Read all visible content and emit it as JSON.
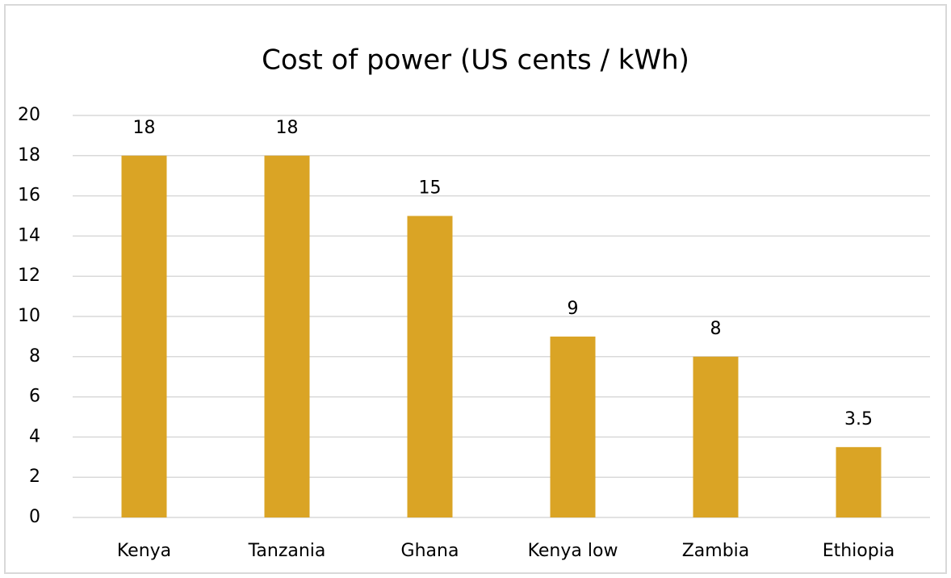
{
  "chart_data": {
    "type": "bar",
    "title": "Cost of power (US cents / kWh)",
    "categories": [
      "Kenya",
      "Tanzania",
      "Ghana",
      "Kenya low",
      "Zambia",
      "Ethiopia"
    ],
    "values": [
      18,
      18,
      15,
      9,
      8,
      3.5
    ],
    "color": "#daa425",
    "ylim": [
      0,
      20
    ],
    "yticks": [
      0,
      2,
      4,
      6,
      8,
      10,
      12,
      14,
      16,
      18,
      20
    ],
    "grid": true
  }
}
